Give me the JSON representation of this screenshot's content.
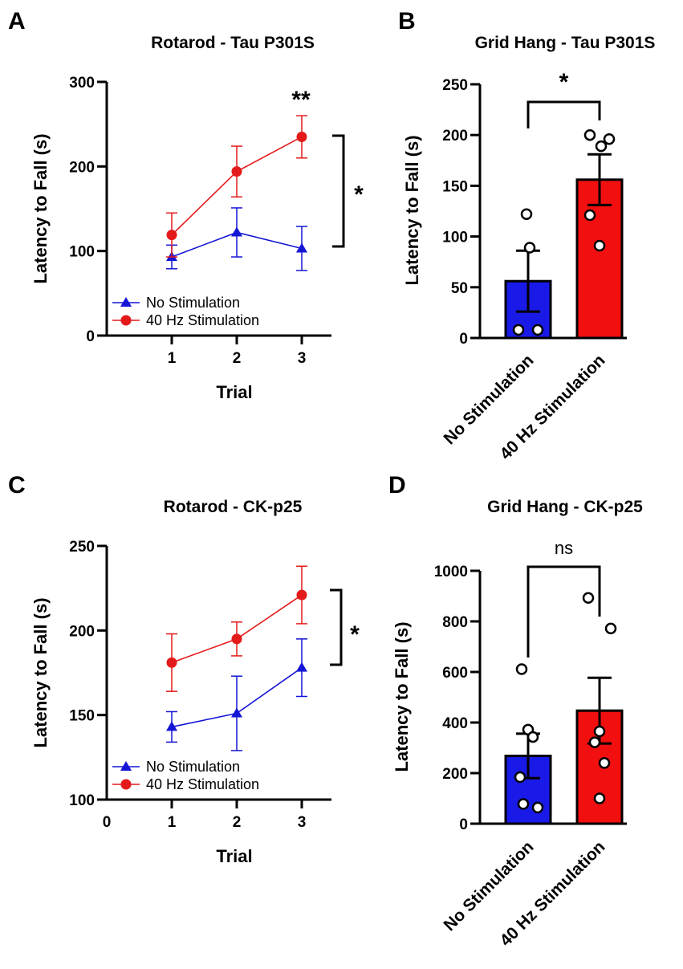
{
  "panels": {
    "A": {
      "letter": "A"
    },
    "B": {
      "letter": "B"
    },
    "C": {
      "letter": "C"
    },
    "D": {
      "letter": "D"
    }
  },
  "colors": {
    "blue": "#1515d6",
    "red": "#e41a1a",
    "blue_fill": "#1a1ae8",
    "red_fill": "#f20f0f"
  },
  "chart_data": [
    {
      "id": "A",
      "type": "line",
      "title": "Rotarod - Tau P301S",
      "xlabel": "Trial",
      "ylabel": "Latency to Fall (s)",
      "x": [
        1,
        2,
        3
      ],
      "xticks": [
        "1",
        "2",
        "3"
      ],
      "ylim": [
        0,
        300
      ],
      "yticks": [
        "0",
        "100",
        "200",
        "300"
      ],
      "series": [
        {
          "name": "No Stimulation",
          "marker": "triangle",
          "values": [
            93,
            122,
            103
          ],
          "errors": [
            14,
            29,
            26
          ]
        },
        {
          "name": "40 Hz Stimulation",
          "marker": "circle",
          "values": [
            119,
            194,
            235
          ],
          "errors": [
            26,
            30,
            25
          ]
        }
      ],
      "annotations": [
        {
          "text": "**",
          "at_trial": 3
        },
        {
          "text": "*",
          "bracket": "between series"
        }
      ]
    },
    {
      "id": "B",
      "type": "bar",
      "title": "Grid Hang - Tau P301S",
      "ylabel": "Latency to Fall (s)",
      "categories": [
        "No Stimulation",
        "40 Hz Stimulation"
      ],
      "values": [
        56,
        156
      ],
      "errors": [
        30,
        25
      ],
      "points": [
        [
          122,
          89,
          8,
          8
        ],
        [
          200,
          196,
          189,
          121,
          91
        ]
      ],
      "ylim": [
        0,
        250
      ],
      "yticks": [
        "0",
        "50",
        "100",
        "150",
        "200",
        "250"
      ],
      "significance": "*"
    },
    {
      "id": "C",
      "type": "line",
      "title": "Rotarod - CK-p25",
      "xlabel": "Trial",
      "ylabel": "Latency to Fall (s)",
      "x": [
        1,
        2,
        3
      ],
      "xticks": [
        "0",
        "1",
        "2",
        "3"
      ],
      "ylim": [
        100,
        250
      ],
      "yticks": [
        "100",
        "150",
        "200",
        "250"
      ],
      "series": [
        {
          "name": "No Stimulation",
          "marker": "triangle",
          "values": [
            143,
            151,
            178
          ],
          "errors": [
            9,
            22,
            17
          ]
        },
        {
          "name": "40 Hz Stimulation",
          "marker": "circle",
          "values": [
            181,
            195,
            221
          ],
          "errors": [
            17,
            10,
            17
          ]
        }
      ],
      "annotations": [
        {
          "text": "*",
          "bracket": "between series"
        }
      ]
    },
    {
      "id": "D",
      "type": "bar",
      "title": "Grid Hang - CK-p25",
      "ylabel": "Latency to Fall (s)",
      "categories": [
        "No Stimulation",
        "40 Hz Stimulation"
      ],
      "values": [
        268,
        447
      ],
      "errors": [
        88,
        130
      ],
      "points": [
        [
          611,
          372,
          343,
          184,
          64,
          78
        ],
        [
          893,
          772,
          365,
          322,
          240,
          100
        ]
      ],
      "ylim": [
        0,
        1000
      ],
      "yticks": [
        "0",
        "200",
        "400",
        "600",
        "800",
        "1000"
      ],
      "significance": "ns"
    }
  ]
}
